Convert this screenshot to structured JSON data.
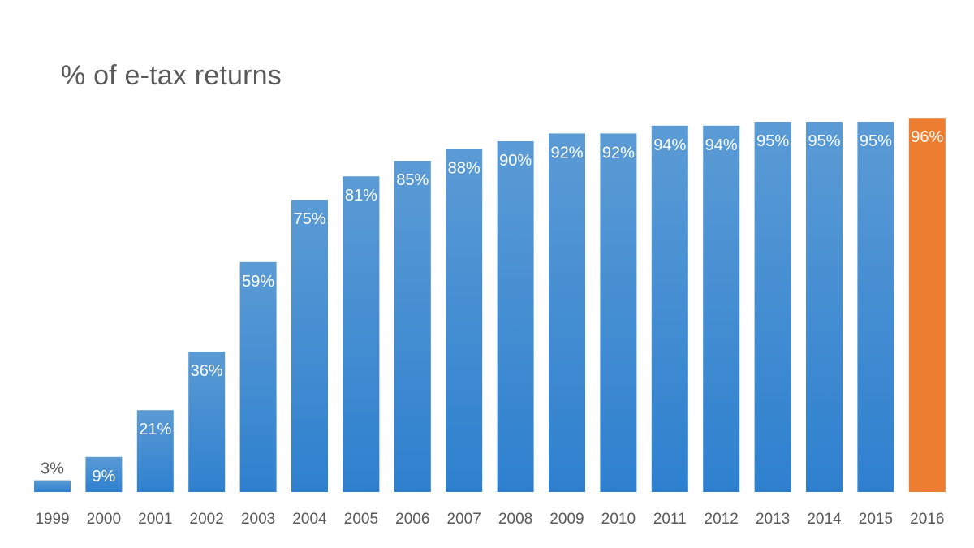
{
  "chart_data": {
    "type": "bar",
    "title": "% of e-tax returns",
    "xlabel": "",
    "ylabel": "",
    "ylim": [
      0,
      100
    ],
    "grid": false,
    "legend": "none",
    "categories": [
      "1999",
      "2000",
      "2001",
      "2002",
      "2003",
      "2004",
      "2005",
      "2006",
      "2007",
      "2008",
      "2009",
      "2010",
      "2011",
      "2012",
      "2013",
      "2014",
      "2015",
      "2016"
    ],
    "values": [
      3,
      9,
      21,
      36,
      59,
      75,
      81,
      85,
      88,
      90,
      92,
      92,
      94,
      94,
      95,
      95,
      95,
      96
    ],
    "data_labels": [
      "3%",
      "9%",
      "21%",
      "36%",
      "59%",
      "75%",
      "81%",
      "85%",
      "88%",
      "90%",
      "92%",
      "92%",
      "94%",
      "94%",
      "95%",
      "95%",
      "95%",
      "96%"
    ],
    "colors": {
      "bar_top": "#5b9bd5",
      "bar_bottom": "#2e80cf",
      "highlight": "#ed7d31",
      "label_inside": "#ffffff",
      "label_outside": "#595959"
    },
    "highlight_category": "2016"
  }
}
